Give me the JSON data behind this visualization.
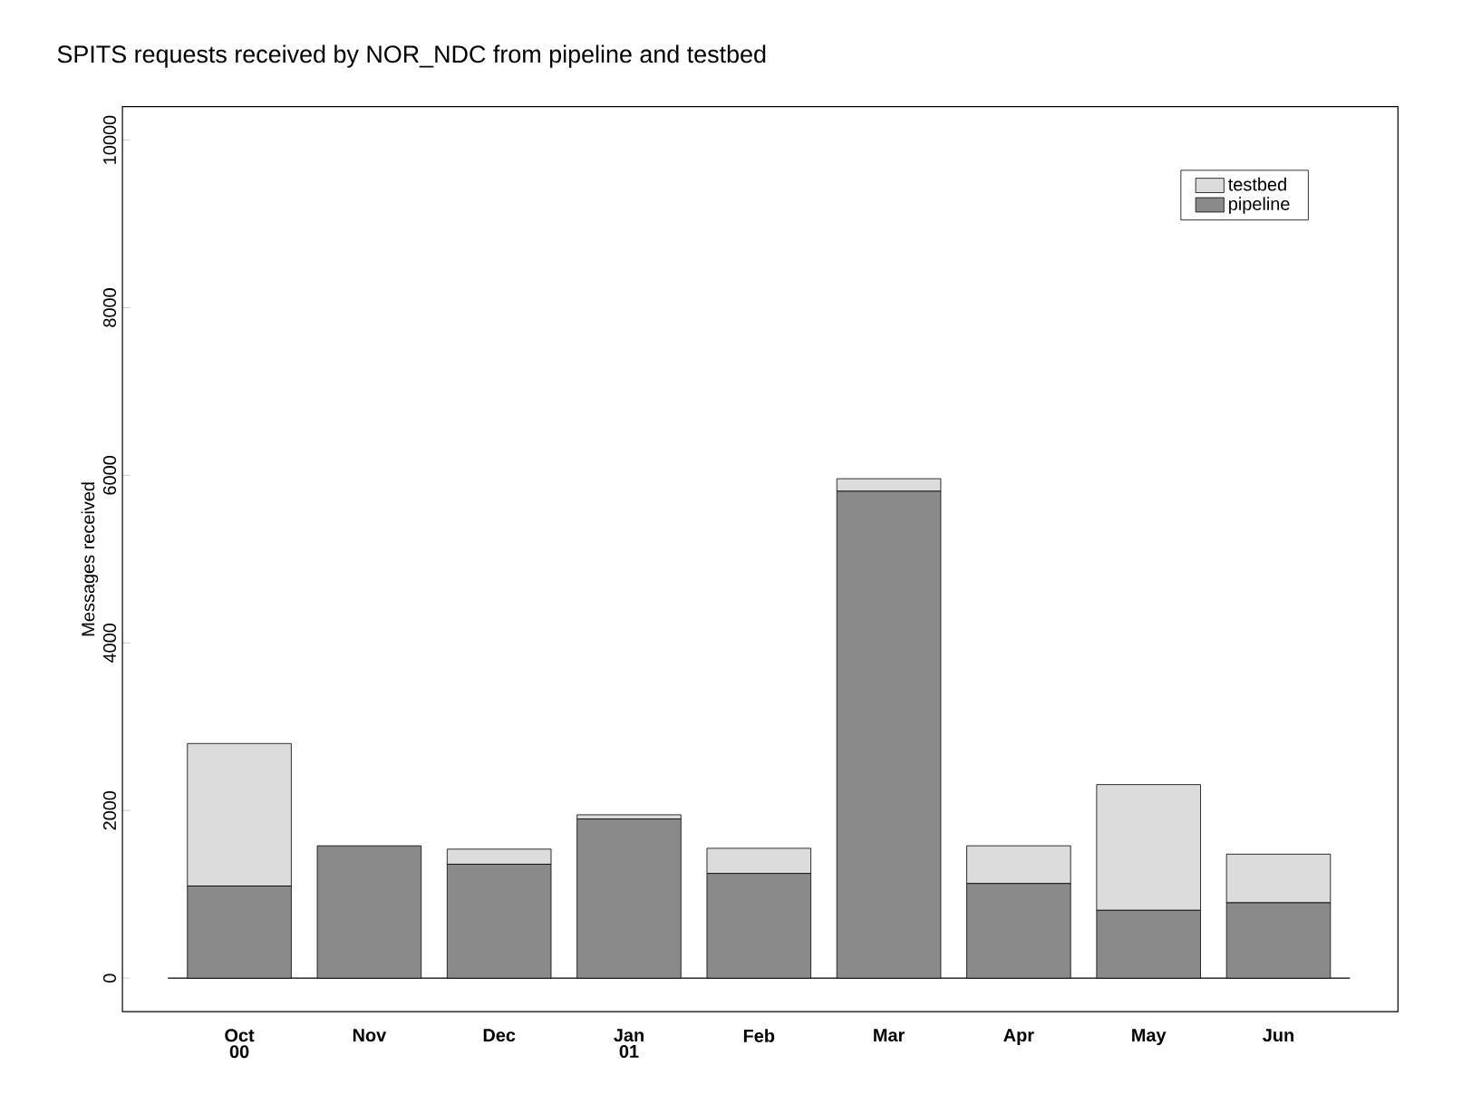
{
  "chart_data": {
    "type": "bar",
    "stacked": true,
    "title": "SPITS requests received by NOR_NDC from pipeline and testbed",
    "ylabel": "Messages received",
    "categories": [
      "Oct 00",
      "Nov",
      "Dec",
      "Jan 01",
      "Feb",
      "Mar",
      "Apr",
      "May",
      "Jun"
    ],
    "series": [
      {
        "name": "pipeline",
        "color": "#8a8a8a",
        "values": [
          1100,
          1580,
          1360,
          1900,
          1250,
          5810,
          1130,
          810,
          900
        ]
      },
      {
        "name": "testbed",
        "color": "#dcdcdc",
        "values": [
          1700,
          null,
          180,
          50,
          300,
          150,
          450,
          1500,
          580
        ]
      }
    ],
    "ylim": [
      -400,
      10400
    ],
    "yticks": [
      0,
      2000,
      4000,
      6000,
      8000,
      10000
    ],
    "legend": "top right",
    "grid": false,
    "ref_lines": [
      {
        "axis": "y",
        "value": 0,
        "color": "#000000"
      }
    ]
  }
}
